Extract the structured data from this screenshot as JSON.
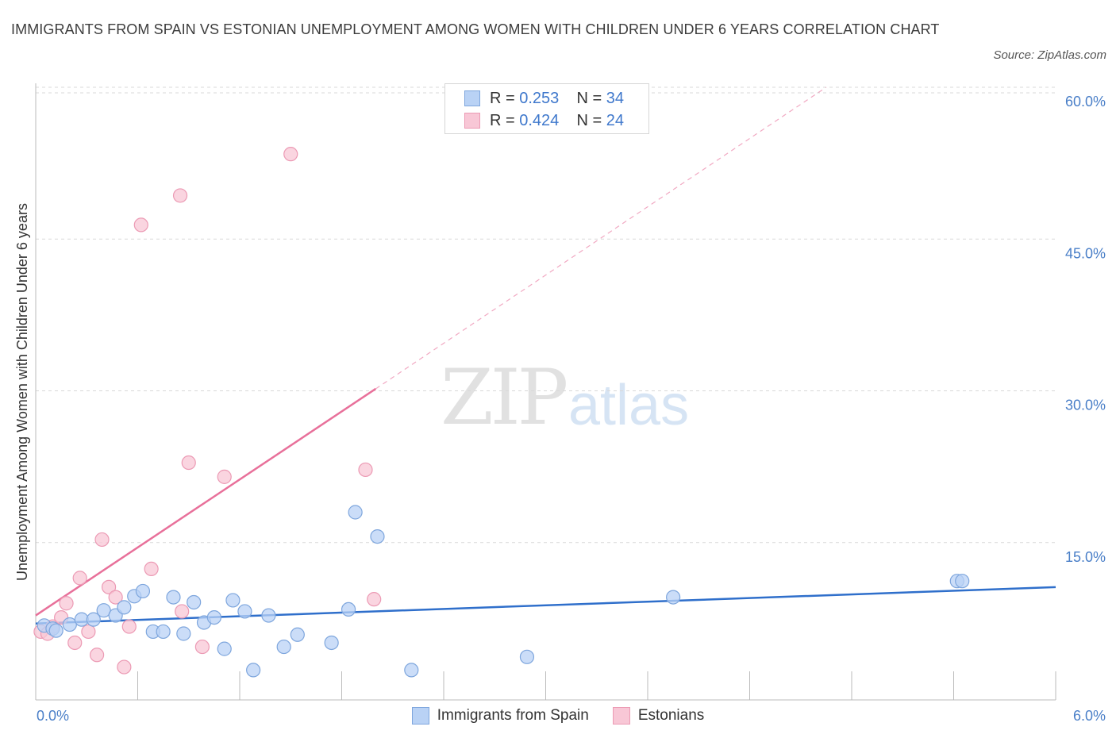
{
  "header": {
    "title": "IMMIGRANTS FROM SPAIN VS ESTONIAN UNEMPLOYMENT AMONG WOMEN WITH CHILDREN UNDER 6 YEARS CORRELATION CHART",
    "source": "Source: ZipAtlas.com"
  },
  "watermark": {
    "zip": "ZIP",
    "atlas": "atlas"
  },
  "legend": {
    "rows": [
      {
        "r_label": "R =",
        "r_value": "0.253",
        "n_label": "N =",
        "n_value": "34"
      },
      {
        "r_label": "R =",
        "r_value": "0.424",
        "n_label": "N =",
        "n_value": "24"
      }
    ],
    "bottom": [
      "Immigrants from Spain",
      "Estonians"
    ]
  },
  "colors": {
    "spain_fill": "#b9d2f5",
    "spain_stroke": "#7ea6dd",
    "spain_line": "#2f6fcb",
    "est_fill": "#f8c7d6",
    "est_stroke": "#ec9ab4",
    "est_line": "#e8709a",
    "tick": "#4a7fc8",
    "grid": "#d9d9d9"
  },
  "chart_data": {
    "type": "scatter",
    "xlabel": "",
    "ylabel": "Unemployment Among Women with Children Under 6 years",
    "xlim": [
      0,
      6
    ],
    "ylim": [
      0,
      60
    ],
    "x_tick_labels": [
      "0.0%",
      "6.0%"
    ],
    "y_ticks": [
      15,
      30,
      45,
      60
    ],
    "y_tick_labels": [
      "15.0%",
      "30.0%",
      "45.0%",
      "60.0%"
    ],
    "grid": true,
    "series": [
      {
        "name": "Immigrants from Spain",
        "points": [
          [
            0.05,
            6.8
          ],
          [
            0.1,
            6.5
          ],
          [
            0.12,
            6.3
          ],
          [
            0.2,
            6.9
          ],
          [
            0.27,
            7.4
          ],
          [
            0.34,
            7.4
          ],
          [
            0.4,
            8.3
          ],
          [
            0.47,
            7.8
          ],
          [
            0.52,
            8.6
          ],
          [
            0.58,
            9.7
          ],
          [
            0.63,
            10.2
          ],
          [
            0.69,
            6.2
          ],
          [
            0.75,
            6.2
          ],
          [
            0.81,
            9.6
          ],
          [
            0.87,
            6.0
          ],
          [
            0.93,
            9.1
          ],
          [
            0.99,
            7.1
          ],
          [
            1.05,
            7.6
          ],
          [
            1.11,
            4.5
          ],
          [
            1.16,
            9.3
          ],
          [
            1.23,
            8.2
          ],
          [
            1.28,
            2.4
          ],
          [
            1.37,
            7.8
          ],
          [
            1.46,
            4.7
          ],
          [
            1.54,
            5.9
          ],
          [
            1.74,
            5.1
          ],
          [
            1.84,
            8.4
          ],
          [
            1.88,
            18.0
          ],
          [
            2.01,
            15.6
          ],
          [
            2.21,
            2.4
          ],
          [
            2.89,
            3.7
          ],
          [
            3.75,
            9.6
          ],
          [
            5.42,
            11.2
          ],
          [
            5.45,
            11.2
          ]
        ],
        "trend": {
          "x0": 0,
          "y0": 7.0,
          "x1": 6.0,
          "y1": 10.6
        }
      },
      {
        "name": "Estonians",
        "points": [
          [
            0.03,
            6.2
          ],
          [
            0.07,
            6.0
          ],
          [
            0.1,
            6.7
          ],
          [
            0.15,
            7.6
          ],
          [
            0.18,
            9.0
          ],
          [
            0.23,
            5.1
          ],
          [
            0.26,
            11.5
          ],
          [
            0.31,
            6.2
          ],
          [
            0.36,
            3.9
          ],
          [
            0.39,
            15.3
          ],
          [
            0.43,
            10.6
          ],
          [
            0.47,
            9.6
          ],
          [
            0.52,
            2.7
          ],
          [
            0.55,
            6.7
          ],
          [
            0.62,
            46.4
          ],
          [
            0.68,
            12.4
          ],
          [
            0.85,
            49.3
          ],
          [
            0.86,
            8.2
          ],
          [
            0.9,
            22.9
          ],
          [
            0.98,
            4.7
          ],
          [
            1.11,
            21.5
          ],
          [
            1.5,
            53.4
          ],
          [
            1.94,
            22.2
          ],
          [
            1.99,
            9.4
          ]
        ],
        "trend": {
          "x0": 0,
          "y0": 7.8,
          "x1": 2.0,
          "y1": 30.2,
          "x_ext": 4.65,
          "y_ext": 60.0
        }
      }
    ]
  }
}
